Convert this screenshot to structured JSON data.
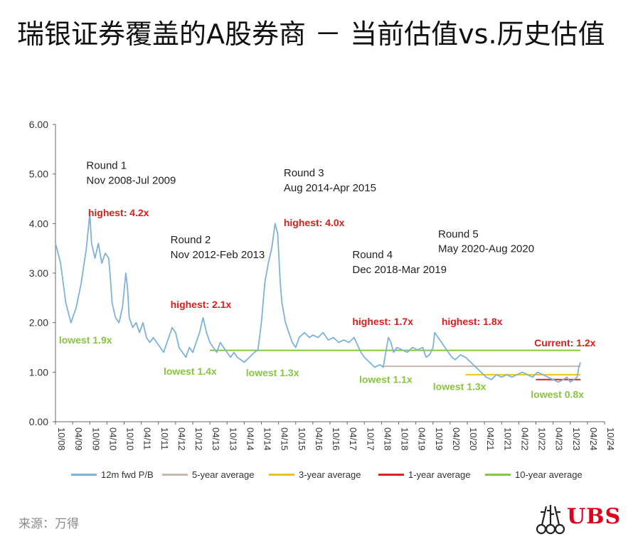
{
  "title": "瑞银证券覆盖的A股券商 － 当前估值vs.历史估值",
  "source": "来源：万得",
  "logo_text": "UBS",
  "chart_data": {
    "type": "line",
    "ylim": [
      0,
      6
    ],
    "y_ticks": [
      "0.00",
      "1.00",
      "2.00",
      "3.00",
      "4.00",
      "5.00",
      "6.00"
    ],
    "x_ticks": [
      "10/08",
      "04/09",
      "10/09",
      "04/10",
      "10/10",
      "04/11",
      "10/11",
      "04/12",
      "10/12",
      "04/13",
      "10/13",
      "04/14",
      "10/14",
      "04/15",
      "10/15",
      "04/16",
      "10/16",
      "04/17",
      "10/17",
      "04/18",
      "10/18",
      "04/19",
      "10/19",
      "04/20",
      "10/20",
      "04/21",
      "10/21",
      "04/22",
      "10/22",
      "04/23",
      "10/23",
      "04/24",
      "10/24"
    ],
    "series": [
      {
        "name": "12m fwd P/B",
        "color": "#7db3d6",
        "points": [
          [
            0,
            3.6
          ],
          [
            0.3,
            3.2
          ],
          [
            0.6,
            2.4
          ],
          [
            0.9,
            2.0
          ],
          [
            1.2,
            2.3
          ],
          [
            1.5,
            2.8
          ],
          [
            1.8,
            3.5
          ],
          [
            2.0,
            4.2
          ],
          [
            2.1,
            3.6
          ],
          [
            2.3,
            3.3
          ],
          [
            2.5,
            3.6
          ],
          [
            2.7,
            3.2
          ],
          [
            2.9,
            3.4
          ],
          [
            3.1,
            3.3
          ],
          [
            3.2,
            2.9
          ],
          [
            3.3,
            2.4
          ],
          [
            3.5,
            2.1
          ],
          [
            3.7,
            2.0
          ],
          [
            3.9,
            2.3
          ],
          [
            4.1,
            3.0
          ],
          [
            4.2,
            2.7
          ],
          [
            4.3,
            2.1
          ],
          [
            4.5,
            1.9
          ],
          [
            4.7,
            2.0
          ],
          [
            4.9,
            1.8
          ],
          [
            5.1,
            2.0
          ],
          [
            5.3,
            1.7
          ],
          [
            5.5,
            1.6
          ],
          [
            5.7,
            1.7
          ],
          [
            5.9,
            1.6
          ],
          [
            6.1,
            1.5
          ],
          [
            6.3,
            1.4
          ],
          [
            6.5,
            1.6
          ],
          [
            6.8,
            1.9
          ],
          [
            7.0,
            1.8
          ],
          [
            7.2,
            1.5
          ],
          [
            7.4,
            1.4
          ],
          [
            7.6,
            1.3
          ],
          [
            7.8,
            1.5
          ],
          [
            8.0,
            1.4
          ],
          [
            8.2,
            1.6
          ],
          [
            8.4,
            1.8
          ],
          [
            8.6,
            2.1
          ],
          [
            8.8,
            1.8
          ],
          [
            9.0,
            1.6
          ],
          [
            9.2,
            1.5
          ],
          [
            9.4,
            1.4
          ],
          [
            9.6,
            1.6
          ],
          [
            9.8,
            1.5
          ],
          [
            10.0,
            1.4
          ],
          [
            10.2,
            1.3
          ],
          [
            10.4,
            1.4
          ],
          [
            10.6,
            1.3
          ],
          [
            10.8,
            1.25
          ],
          [
            11.0,
            1.2
          ],
          [
            11.3,
            1.3
          ],
          [
            11.6,
            1.4
          ],
          [
            11.8,
            1.45
          ],
          [
            12.0,
            2.0
          ],
          [
            12.2,
            2.8
          ],
          [
            12.4,
            3.2
          ],
          [
            12.6,
            3.5
          ],
          [
            12.8,
            4.0
          ],
          [
            12.95,
            3.8
          ],
          [
            13.1,
            2.8
          ],
          [
            13.2,
            2.4
          ],
          [
            13.4,
            2.0
          ],
          [
            13.6,
            1.8
          ],
          [
            13.8,
            1.6
          ],
          [
            14.0,
            1.5
          ],
          [
            14.2,
            1.7
          ],
          [
            14.5,
            1.8
          ],
          [
            14.8,
            1.7
          ],
          [
            15.0,
            1.75
          ],
          [
            15.3,
            1.7
          ],
          [
            15.6,
            1.8
          ],
          [
            15.9,
            1.65
          ],
          [
            16.2,
            1.7
          ],
          [
            16.5,
            1.6
          ],
          [
            16.8,
            1.65
          ],
          [
            17.1,
            1.6
          ],
          [
            17.4,
            1.7
          ],
          [
            17.6,
            1.55
          ],
          [
            17.8,
            1.4
          ],
          [
            18.0,
            1.3
          ],
          [
            18.3,
            1.2
          ],
          [
            18.6,
            1.1
          ],
          [
            18.9,
            1.15
          ],
          [
            19.1,
            1.1
          ],
          [
            19.3,
            1.5
          ],
          [
            19.4,
            1.7
          ],
          [
            19.55,
            1.6
          ],
          [
            19.7,
            1.4
          ],
          [
            19.9,
            1.5
          ],
          [
            20.2,
            1.45
          ],
          [
            20.5,
            1.4
          ],
          [
            20.8,
            1.5
          ],
          [
            21.1,
            1.45
          ],
          [
            21.4,
            1.5
          ],
          [
            21.6,
            1.3
          ],
          [
            21.8,
            1.35
          ],
          [
            22.0,
            1.5
          ],
          [
            22.1,
            1.8
          ],
          [
            22.3,
            1.7
          ],
          [
            22.5,
            1.6
          ],
          [
            22.7,
            1.5
          ],
          [
            22.9,
            1.4
          ],
          [
            23.1,
            1.3
          ],
          [
            23.3,
            1.25
          ],
          [
            23.6,
            1.35
          ],
          [
            23.9,
            1.3
          ],
          [
            24.2,
            1.2
          ],
          [
            24.5,
            1.1
          ],
          [
            24.8,
            1.0
          ],
          [
            25.1,
            0.9
          ],
          [
            25.4,
            0.85
          ],
          [
            25.7,
            0.95
          ],
          [
            26.0,
            0.9
          ],
          [
            26.3,
            0.95
          ],
          [
            26.6,
            0.9
          ],
          [
            26.9,
            0.95
          ],
          [
            27.2,
            1.0
          ],
          [
            27.5,
            0.95
          ],
          [
            27.8,
            0.9
          ],
          [
            28.1,
            1.0
          ],
          [
            28.4,
            0.95
          ],
          [
            28.7,
            0.9
          ],
          [
            29.0,
            0.85
          ],
          [
            29.3,
            0.8
          ],
          [
            29.6,
            0.85
          ],
          [
            29.8,
            0.9
          ],
          [
            30.0,
            0.8
          ],
          [
            30.2,
            0.85
          ],
          [
            30.4,
            0.9
          ],
          [
            30.5,
            1.1
          ],
          [
            30.6,
            1.2
          ]
        ]
      },
      {
        "name": "5-year average",
        "color": "#c9b8ad",
        "x_range": [
          19.0,
          30.6
        ],
        "value": 1.12
      },
      {
        "name": "3-year average",
        "color": "#f0c020",
        "x_range": [
          23.9,
          30.6
        ],
        "value": 0.95
      },
      {
        "name": "1-year average",
        "color": "#e02020",
        "x_range": [
          28.0,
          30.6
        ],
        "value": 0.85
      },
      {
        "name": "10-year average",
        "color": "#88c540",
        "x_range": [
          9.0,
          30.6
        ],
        "value": 1.44
      }
    ],
    "annotations": [
      {
        "text": "Round 1",
        "kind": "round",
        "x": 1.8,
        "y": 5.1
      },
      {
        "text": "Nov 2008-Jul 2009",
        "kind": "round",
        "x": 1.8,
        "y": 4.8
      },
      {
        "text": "Round 2",
        "kind": "round",
        "x": 6.7,
        "y": 3.6
      },
      {
        "text": "Nov 2012-Feb 2013",
        "kind": "round",
        "x": 6.7,
        "y": 3.3
      },
      {
        "text": "Round 3",
        "kind": "round",
        "x": 13.3,
        "y": 4.95
      },
      {
        "text": "Aug 2014-Apr 2015",
        "kind": "round",
        "x": 13.3,
        "y": 4.65
      },
      {
        "text": "Round 4",
        "kind": "round",
        "x": 17.3,
        "y": 3.3
      },
      {
        "text": "Dec 2018-Mar 2019",
        "kind": "round",
        "x": 17.3,
        "y": 3.0
      },
      {
        "text": "Round 5",
        "kind": "round",
        "x": 22.3,
        "y": 3.72
      },
      {
        "text": "May 2020-Aug 2020",
        "kind": "round",
        "x": 22.3,
        "y": 3.42
      },
      {
        "text": "highest: 4.2x",
        "kind": "high",
        "x": 1.9,
        "y": 4.15
      },
      {
        "text": "highest: 2.1x",
        "kind": "high",
        "x": 6.7,
        "y": 2.3
      },
      {
        "text": "highest: 4.0x",
        "kind": "high",
        "x": 13.3,
        "y": 3.95
      },
      {
        "text": "highest: 1.7x",
        "kind": "high",
        "x": 17.3,
        "y": 1.95
      },
      {
        "text": "highest: 1.8x",
        "kind": "high",
        "x": 22.5,
        "y": 1.95
      },
      {
        "text": "Current: 1.2x",
        "kind": "high",
        "x": 27.9,
        "y": 1.52
      },
      {
        "text": "lowest 1.9x",
        "kind": "low",
        "x": 0.2,
        "y": 1.58
      },
      {
        "text": "lowest 1.4x",
        "kind": "low",
        "x": 6.3,
        "y": 0.95
      },
      {
        "text": "lowest 1.3x",
        "kind": "low",
        "x": 11.1,
        "y": 0.92
      },
      {
        "text": "lowest 1.1x",
        "kind": "low",
        "x": 17.7,
        "y": 0.78
      },
      {
        "text": "lowest 1.3x",
        "kind": "low",
        "x": 22.0,
        "y": 0.64
      },
      {
        "text": "lowest 0.8x",
        "kind": "low",
        "x": 27.7,
        "y": 0.48
      }
    ],
    "legend_position": "bottom"
  }
}
